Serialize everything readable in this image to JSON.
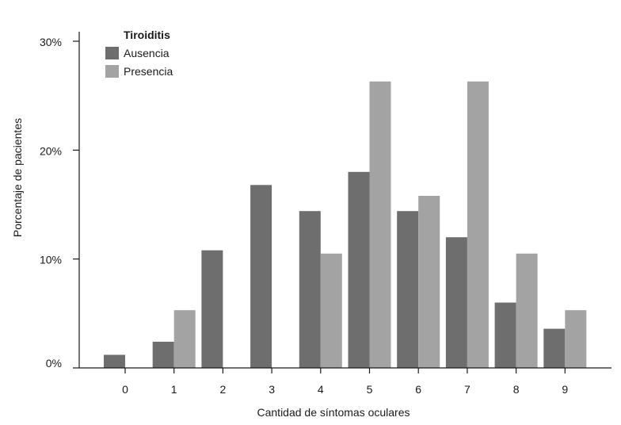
{
  "chart_data": {
    "type": "bar",
    "xlabel": "Cantidad de síntomas oculares",
    "ylabel": "Porcentaje de pacientes",
    "ylim": [
      0,
      30
    ],
    "yticks": [
      0,
      10,
      20,
      30
    ],
    "ytick_labels": [
      "0%",
      "10%",
      "20%",
      "30%"
    ],
    "categories": [
      "0",
      "1",
      "2",
      "3",
      "4",
      "5",
      "6",
      "7",
      "8",
      "9"
    ],
    "legend": {
      "title": "Tiroiditis",
      "position": "top-left"
    },
    "grid": false,
    "series": [
      {
        "name": "Ausencia",
        "color": "#6e6e6e",
        "values": [
          1.2,
          2.4,
          10.8,
          16.8,
          14.4,
          18.0,
          14.4,
          12.0,
          6.0,
          3.6
        ]
      },
      {
        "name": "Presencia",
        "color": "#a3a3a3",
        "values": [
          0,
          5.3,
          0,
          0,
          10.5,
          26.3,
          15.8,
          26.3,
          10.5,
          5.3
        ]
      }
    ]
  }
}
